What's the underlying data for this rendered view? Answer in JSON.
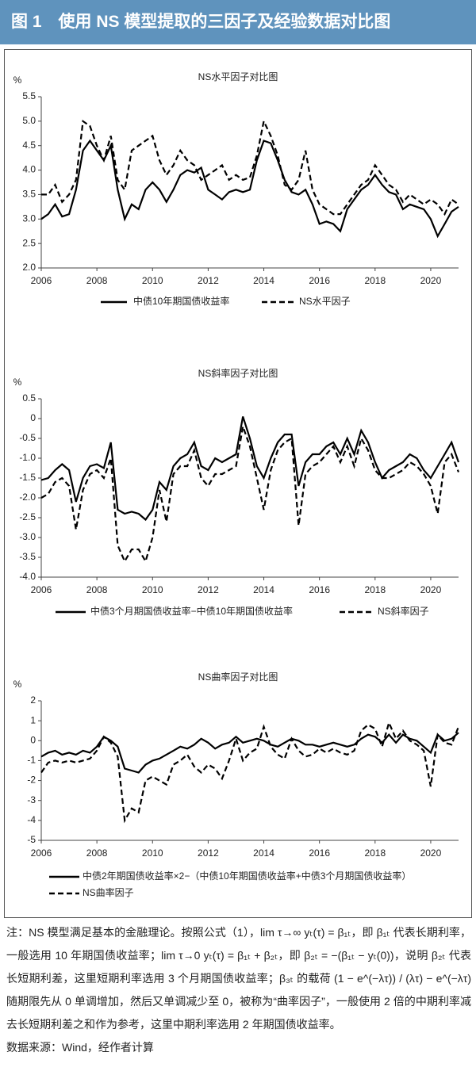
{
  "header": {
    "title": "图 1　使用 NS 模型提取的三因子及经验数据对比图"
  },
  "chart_data": [
    {
      "type": "line",
      "title": "NS水平因子对比图",
      "y_label": "%",
      "xlim": [
        2006,
        2021
      ],
      "xticks": [
        2006,
        2008,
        2010,
        2012,
        2014,
        2016,
        2018,
        2020
      ],
      "ylim": [
        2,
        5.5
      ],
      "yticks": [
        {
          "value": 2,
          "label": "2.0"
        },
        2.5,
        {
          "value": 3,
          "label": "3.0"
        },
        3.5,
        {
          "value": 4,
          "label": "4.0"
        },
        4.5,
        {
          "value": 5,
          "label": "5.0"
        },
        5.5
      ],
      "legend": "bottom",
      "x": [
        2006,
        2006.25,
        2006.5,
        2006.75,
        2007,
        2007.25,
        2007.5,
        2007.75,
        2008,
        2008.25,
        2008.5,
        2008.75,
        2009,
        2009.25,
        2009.5,
        2009.75,
        2010,
        2010.25,
        2010.5,
        2010.75,
        2011,
        2011.25,
        2011.5,
        2011.75,
        2012,
        2012.25,
        2012.5,
        2012.75,
        2013,
        2013.25,
        2013.5,
        2013.75,
        2014,
        2014.25,
        2014.5,
        2014.75,
        2015,
        2015.25,
        2015.5,
        2015.75,
        2016,
        2016.25,
        2016.5,
        2016.75,
        2017,
        2017.25,
        2017.5,
        2017.75,
        2018,
        2018.25,
        2018.5,
        2018.75,
        2019,
        2019.25,
        2019.5,
        2019.75,
        2020,
        2020.25,
        2020.5,
        2020.75,
        2021
      ],
      "series": [
        {
          "name": "中债10年期国债收益率",
          "color": "#000000",
          "dash": false,
          "values": [
            3.0,
            3.1,
            3.3,
            3.05,
            3.1,
            3.6,
            4.4,
            4.6,
            4.4,
            4.2,
            4.5,
            3.6,
            3.0,
            3.3,
            3.2,
            3.6,
            3.75,
            3.6,
            3.35,
            3.6,
            3.9,
            4.0,
            3.95,
            4.05,
            3.6,
            3.5,
            3.4,
            3.55,
            3.6,
            3.55,
            3.6,
            4.2,
            4.6,
            4.55,
            4.2,
            3.8,
            3.55,
            3.5,
            3.6,
            3.3,
            2.9,
            2.95,
            2.9,
            2.75,
            3.2,
            3.4,
            3.6,
            3.7,
            3.9,
            3.7,
            3.55,
            3.5,
            3.2,
            3.3,
            3.25,
            3.2,
            3.0,
            2.65,
            2.9,
            3.15,
            3.25
          ]
        },
        {
          "name": "NS水平因子",
          "color": "#000000",
          "dash": true,
          "values": [
            3.5,
            3.5,
            3.7,
            3.35,
            3.5,
            3.8,
            5.0,
            4.9,
            4.5,
            4.2,
            4.7,
            3.8,
            3.6,
            4.4,
            4.5,
            4.6,
            4.7,
            4.2,
            3.9,
            4.1,
            4.4,
            4.2,
            4.1,
            3.8,
            3.9,
            4.0,
            4.1,
            3.8,
            3.9,
            3.8,
            3.85,
            4.3,
            5.0,
            4.7,
            4.3,
            3.7,
            3.6,
            3.8,
            4.4,
            3.6,
            3.3,
            3.2,
            3.1,
            3.1,
            3.3,
            3.5,
            3.7,
            3.8,
            4.1,
            3.9,
            3.7,
            3.6,
            3.35,
            3.5,
            3.4,
            3.3,
            3.4,
            3.3,
            3.1,
            3.4,
            3.3
          ]
        }
      ]
    },
    {
      "type": "line",
      "title": "NS斜率因子对比图",
      "y_label": "%",
      "xlim": [
        2006,
        2021
      ],
      "xticks": [
        2006,
        2008,
        2010,
        2012,
        2014,
        2016,
        2018,
        2020
      ],
      "ylim": [
        -4,
        0.5
      ],
      "yticks": [
        {
          "value": -4,
          "label": "-4.0"
        },
        -3.5,
        {
          "value": -3,
          "label": "-3.0"
        },
        -2.5,
        {
          "value": -2,
          "label": "-2.0"
        },
        -1.5,
        {
          "value": -1,
          "label": "-1.0"
        },
        -0.5,
        0,
        0.5
      ],
      "legend": "bottom",
      "x": [
        2006,
        2006.25,
        2006.5,
        2006.75,
        2007,
        2007.25,
        2007.5,
        2007.75,
        2008,
        2008.25,
        2008.5,
        2008.75,
        2009,
        2009.25,
        2009.5,
        2009.75,
        2010,
        2010.25,
        2010.5,
        2010.75,
        2011,
        2011.25,
        2011.5,
        2011.75,
        2012,
        2012.25,
        2012.5,
        2012.75,
        2013,
        2013.25,
        2013.5,
        2013.75,
        2014,
        2014.25,
        2014.5,
        2014.75,
        2015,
        2015.25,
        2015.5,
        2015.75,
        2016,
        2016.25,
        2016.5,
        2016.75,
        2017,
        2017.25,
        2017.5,
        2017.75,
        2018,
        2018.25,
        2018.5,
        2018.75,
        2019,
        2019.25,
        2019.5,
        2019.75,
        2020,
        2020.25,
        2020.5,
        2020.75,
        2021
      ],
      "series": [
        {
          "name": "中债3个月期国债收益率−中债10年期国债收益率",
          "color": "#000000",
          "dash": false,
          "values": [
            -1.55,
            -1.5,
            -1.3,
            -1.15,
            -1.3,
            -2.1,
            -1.5,
            -1.2,
            -1.15,
            -1.25,
            -0.6,
            -2.3,
            -2.4,
            -2.35,
            -2.4,
            -2.55,
            -2.3,
            -1.6,
            -1.8,
            -1.2,
            -1.0,
            -0.9,
            -0.6,
            -1.2,
            -1.3,
            -1.0,
            -1.1,
            -1.0,
            -0.9,
            0.05,
            -0.5,
            -1.2,
            -1.5,
            -1.0,
            -0.6,
            -0.4,
            -0.4,
            -1.7,
            -1.1,
            -0.9,
            -0.9,
            -0.7,
            -0.6,
            -0.9,
            -0.5,
            -0.9,
            -0.3,
            -0.6,
            -1.1,
            -1.5,
            -1.3,
            -1.2,
            -1.1,
            -0.9,
            -1.0,
            -1.3,
            -1.5,
            -1.2,
            -0.9,
            -0.6,
            -1.1
          ]
        },
        {
          "name": "NS斜率因子",
          "color": "#000000",
          "dash": true,
          "values": [
            -2.0,
            -1.9,
            -1.6,
            -1.5,
            -1.7,
            -2.8,
            -1.8,
            -1.4,
            -1.3,
            -1.5,
            -1.0,
            -3.2,
            -3.6,
            -3.3,
            -3.3,
            -3.6,
            -3.0,
            -1.8,
            -2.6,
            -1.4,
            -1.2,
            -1.2,
            -0.8,
            -1.5,
            -1.7,
            -1.4,
            -1.4,
            -1.3,
            -1.2,
            -0.2,
            -0.7,
            -1.5,
            -2.3,
            -1.3,
            -0.8,
            -0.6,
            -0.5,
            -2.7,
            -1.4,
            -1.2,
            -1.1,
            -0.9,
            -0.7,
            -1.1,
            -0.7,
            -1.2,
            -0.5,
            -0.8,
            -1.3,
            -1.5,
            -1.5,
            -1.4,
            -1.3,
            -1.1,
            -1.2,
            -1.4,
            -1.7,
            -2.4,
            -1.1,
            -0.9,
            -1.35
          ]
        }
      ]
    },
    {
      "type": "line",
      "title": "NS曲率因子对比图",
      "y_label": "%",
      "xlim": [
        2006,
        2021
      ],
      "xticks": [
        2006,
        2008,
        2010,
        2012,
        2014,
        2016,
        2018,
        2020
      ],
      "ylim": [
        -5,
        2
      ],
      "yticks": [
        -5,
        -4,
        -3,
        -2,
        -1,
        0,
        1,
        2
      ],
      "legend": "bottom",
      "x": [
        2006,
        2006.25,
        2006.5,
        2006.75,
        2007,
        2007.25,
        2007.5,
        2007.75,
        2008,
        2008.25,
        2008.5,
        2008.75,
        2009,
        2009.25,
        2009.5,
        2009.75,
        2010,
        2010.25,
        2010.5,
        2010.75,
        2011,
        2011.25,
        2011.5,
        2011.75,
        2012,
        2012.25,
        2012.5,
        2012.75,
        2013,
        2013.25,
        2013.5,
        2013.75,
        2014,
        2014.25,
        2014.5,
        2014.75,
        2015,
        2015.25,
        2015.5,
        2015.75,
        2016,
        2016.25,
        2016.5,
        2016.75,
        2017,
        2017.25,
        2017.5,
        2017.75,
        2018,
        2018.25,
        2018.5,
        2018.75,
        2019,
        2019.25,
        2019.5,
        2019.75,
        2020,
        2020.25,
        2020.5,
        2020.75,
        2021
      ],
      "series": [
        {
          "name": "中债2年期国债收益率×2−（中债10年期国债收益率+中债3个月期国债收益率）",
          "color": "#000000",
          "dash": false,
          "values": [
            -0.8,
            -0.6,
            -0.5,
            -0.7,
            -0.6,
            -0.7,
            -0.5,
            -0.6,
            -0.3,
            0.2,
            0.0,
            -0.3,
            -1.4,
            -1.5,
            -1.6,
            -1.2,
            -1.0,
            -0.9,
            -0.7,
            -0.5,
            -0.3,
            -0.4,
            -0.2,
            0.1,
            -0.1,
            -0.4,
            -0.2,
            -0.1,
            0.2,
            -0.1,
            0.0,
            0.1,
            0.0,
            -0.2,
            -0.3,
            -0.1,
            0.1,
            0.0,
            -0.2,
            -0.2,
            -0.3,
            -0.2,
            -0.1,
            -0.2,
            -0.3,
            -0.2,
            0.1,
            0.3,
            0.2,
            -0.1,
            0.3,
            -0.1,
            0.3,
            0.1,
            0.0,
            -0.3,
            -0.6,
            0.3,
            0.0,
            0.1,
            0.4
          ]
        },
        {
          "name": "NS曲率因子",
          "color": "#000000",
          "dash": true,
          "values": [
            -1.6,
            -1.1,
            -1.0,
            -1.1,
            -1.0,
            -1.1,
            -1.0,
            -0.9,
            -0.5,
            0.2,
            -0.1,
            -0.8,
            -4.0,
            -3.4,
            -3.6,
            -2.0,
            -1.8,
            -2.0,
            -2.2,
            -1.2,
            -1.0,
            -0.7,
            -1.3,
            -1.6,
            -1.2,
            -1.4,
            -1.9,
            -1.0,
            0.1,
            -1.0,
            -0.6,
            -0.4,
            0.7,
            -0.3,
            -0.7,
            -0.9,
            0.1,
            -0.5,
            -0.8,
            -0.7,
            -0.4,
            -0.6,
            -0.4,
            -0.6,
            -0.7,
            -0.5,
            0.5,
            0.8,
            0.6,
            -0.3,
            0.9,
            0.1,
            0.5,
            0.0,
            -0.2,
            -0.5,
            -2.3,
            0.3,
            -0.1,
            -0.2,
            0.7
          ]
        }
      ]
    }
  ],
  "note": "注：NS 模型满足基本的金融理论。按照公式（1），lim τ→∞ yₜ(τ) = β₁ₜ，即 β₁ₜ 代表长期利率，一般选用 10 年期国债收益率；lim τ→0 yₜ(τ) = β₁ₜ + β₂ₜ，即 β₂ₜ = −(β₁ₜ − yₜ(0))，说明 β₂ₜ 代表长短期利差，这里短期利率选用 3 个月期国债收益率；β₃ₜ 的载荷 (1 − e^(−λτ)) / (λτ) − e^(−λτ) 随期限先从 0 单调增加，然后又单调减少至 0，被称为“曲率因子”，一般使用 2 倍的中期利率减去长短期利差之和作为参考，这里中期利率选用 2 年期国债收益率。",
  "source": "数据来源：Wind，经作者计算"
}
